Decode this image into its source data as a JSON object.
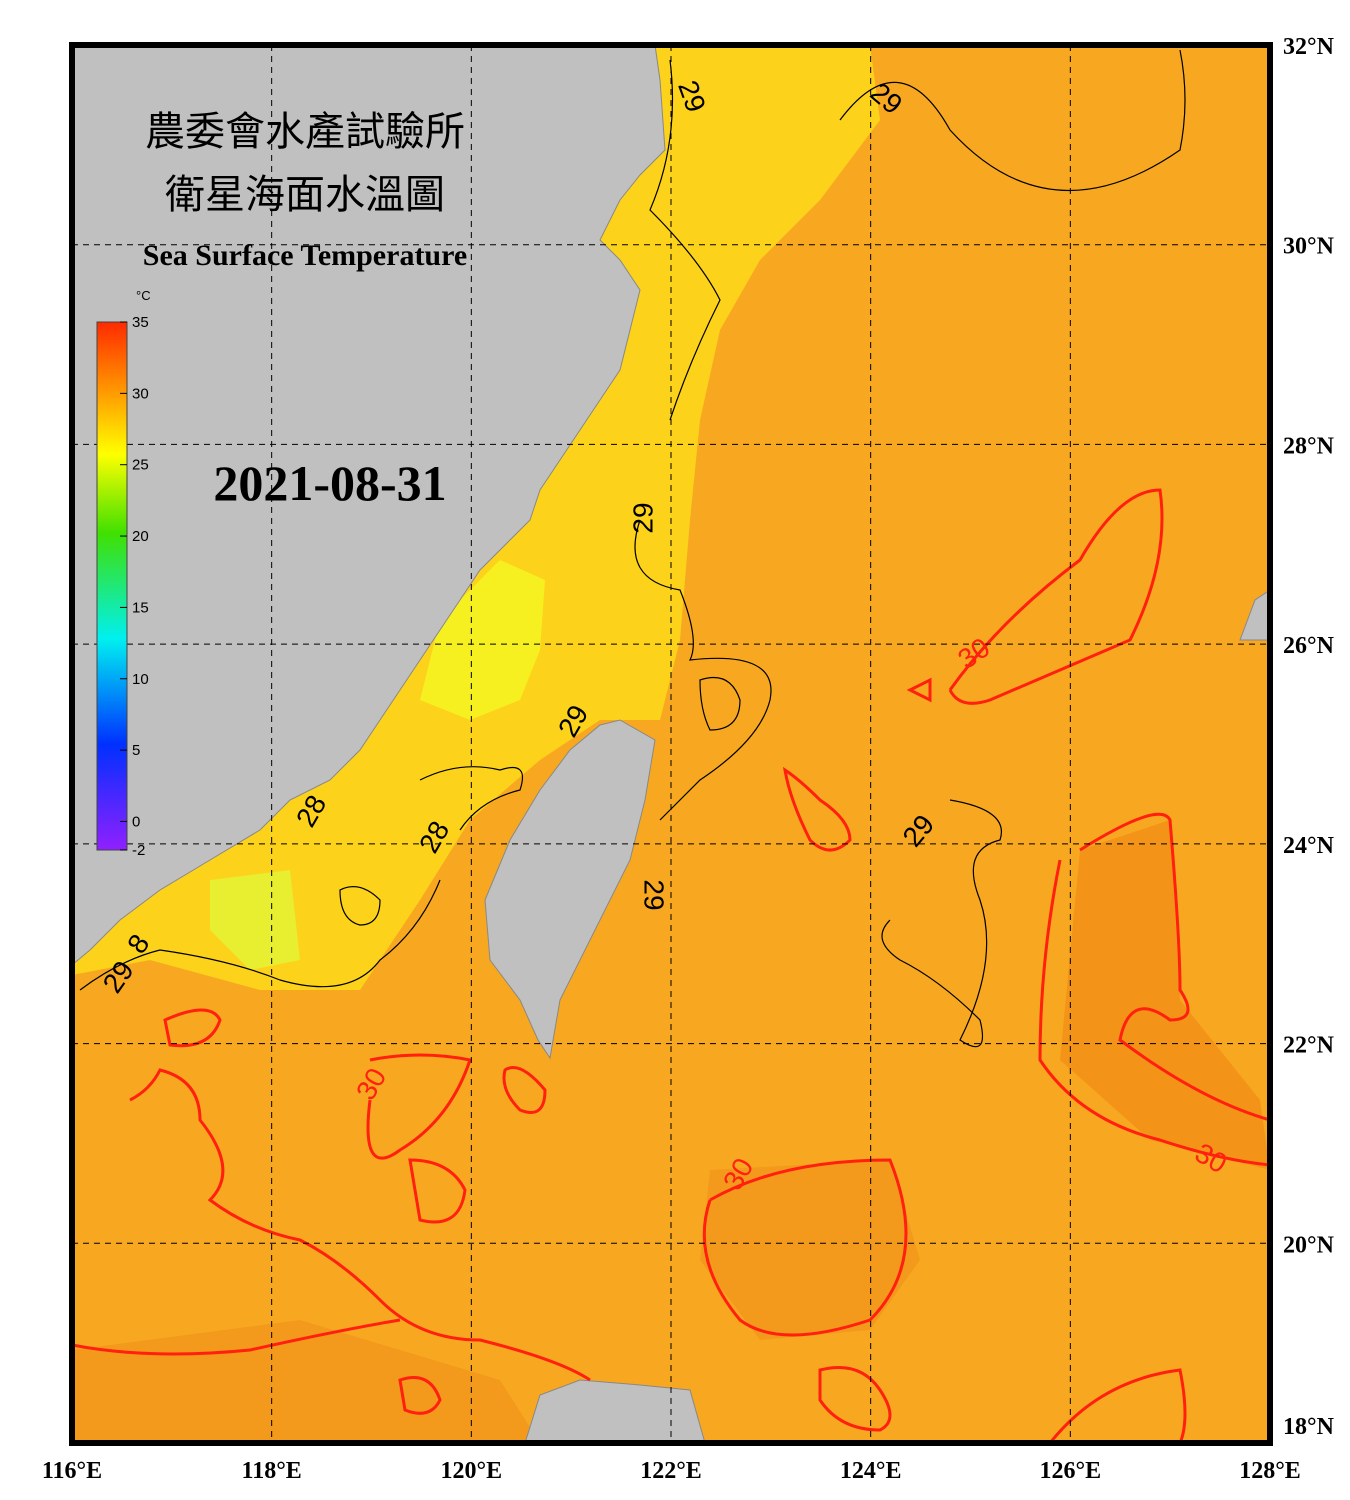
{
  "header": {
    "title_zh_1": "農委會水產試驗所",
    "title_zh_2": "衛星海面水溫圖",
    "title_en": "Sea Surface Temperature"
  },
  "date": "2021-08-31",
  "colorbar": {
    "unit": "°C",
    "range": [
      -2,
      35
    ],
    "ticks": [
      35,
      30,
      25,
      20,
      15,
      10,
      5,
      0,
      -2
    ]
  },
  "axes": {
    "lon_range": [
      116,
      128
    ],
    "lat_range": [
      32,
      18
    ],
    "lon_ticks": [
      {
        "value": 116,
        "label": "116°E"
      },
      {
        "value": 118,
        "label": "118°E"
      },
      {
        "value": 120,
        "label": "120°E"
      },
      {
        "value": 122,
        "label": "122°E"
      },
      {
        "value": 124,
        "label": "124°E"
      },
      {
        "value": 126,
        "label": "126°E"
      },
      {
        "value": 128,
        "label": "128°E"
      }
    ],
    "lat_ticks": [
      {
        "value": 32,
        "label": "32°N"
      },
      {
        "value": 30,
        "label": "30°N"
      },
      {
        "value": 28,
        "label": "28°N"
      },
      {
        "value": 26,
        "label": "26°N"
      },
      {
        "value": 24,
        "label": "24°N"
      },
      {
        "value": 22,
        "label": "22°N"
      },
      {
        "value": 20,
        "label": "20°N"
      },
      {
        "value": 18,
        "label": "18°N"
      }
    ]
  },
  "contour_labels": [
    "29",
    "29",
    "29",
    "30",
    "29",
    "28",
    "28",
    "29",
    "29",
    "29",
    "8",
    "30",
    "30",
    "30"
  ]
}
